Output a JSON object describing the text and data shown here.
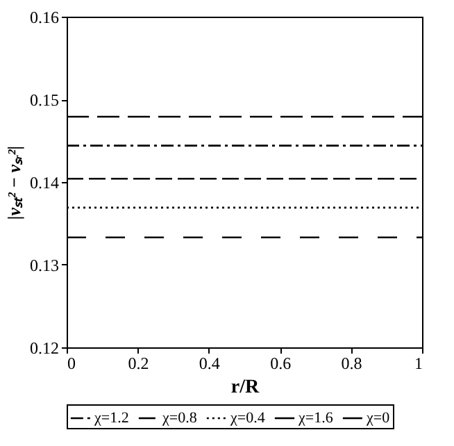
{
  "chart_data": {
    "type": "line",
    "xlabel": "r/R",
    "ylabel": "|vₛₜ² − vₛᵣ²|",
    "x": [
      0,
      1
    ],
    "series": [
      {
        "name": "χ=1.2",
        "color": "#000000",
        "line_style": "dashdot",
        "values": [
          0.1444,
          0.1444
        ]
      },
      {
        "name": "χ=0.8",
        "color": "#000000",
        "line_style": "dashed",
        "values": [
          0.1404,
          0.1404
        ]
      },
      {
        "name": "χ=0.4",
        "color": "#000000",
        "line_style": "dotted",
        "values": [
          0.1369,
          0.1369
        ]
      },
      {
        "name": "χ=1.6",
        "color": "#000000",
        "line_style": "longdash",
        "values": [
          0.1479,
          0.1479
        ]
      },
      {
        "name": "χ=0",
        "color": "#000000",
        "line_style": "loosedash",
        "values": [
          0.1333,
          0.1333
        ]
      }
    ],
    "xlim": [
      0,
      1
    ],
    "xticks": [
      0,
      0.2,
      0.4,
      0.6,
      0.8,
      1
    ],
    "ylim": [
      0.12,
      0.16
    ],
    "yticks": [
      0.12,
      0.13,
      0.14,
      0.15,
      0.16
    ],
    "grid": false,
    "legend": "bottom",
    "marker": "none"
  }
}
